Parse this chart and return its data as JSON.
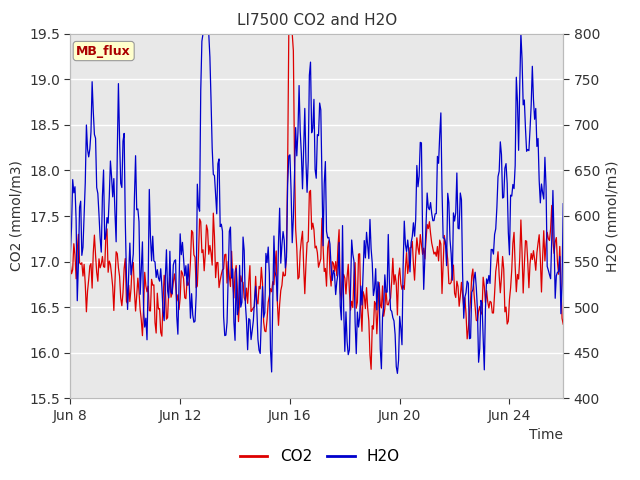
{
  "title": "LI7500 CO2 and H2O",
  "xlabel": "Time",
  "ylabel_left": "CO2 (mmol/m3)",
  "ylabel_right": "H2O (mmol/m3)",
  "ylim_left": [
    15.5,
    19.5
  ],
  "ylim_right": [
    400,
    800
  ],
  "yticks_left": [
    15.5,
    16.0,
    16.5,
    17.0,
    17.5,
    18.0,
    18.5,
    19.0,
    19.5
  ],
  "yticks_right": [
    400,
    450,
    500,
    550,
    600,
    650,
    700,
    750,
    800
  ],
  "xtick_labels": [
    "Jun 8",
    "Jun 12",
    "Jun 16",
    "Jun 20",
    "Jun 24"
  ],
  "xtick_positions": [
    0,
    96,
    192,
    288,
    384
  ],
  "n_points": 432,
  "tag_text": "MB_flux",
  "tag_bg": "#ffffcc",
  "tag_fg": "#aa0000",
  "co2_color": "#dd0000",
  "h2o_color": "#0000cc",
  "bg_color": "#e8e8e8",
  "legend_co2": "CO2",
  "legend_h2o": "H2O",
  "title_fontsize": 11,
  "axis_fontsize": 10,
  "tick_fontsize": 10
}
